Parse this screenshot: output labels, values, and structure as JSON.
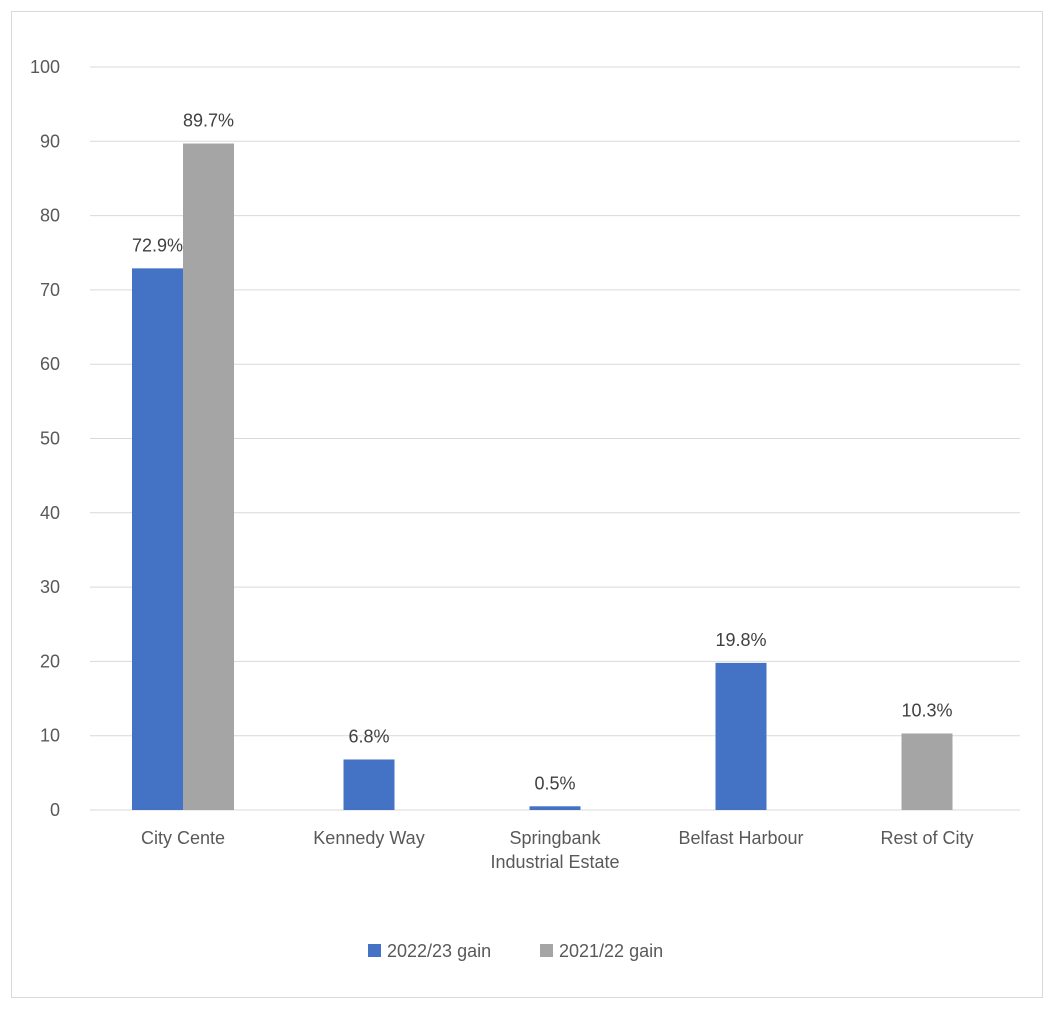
{
  "chart_data": {
    "type": "bar",
    "categories": [
      [
        "City Cente"
      ],
      [
        "Kennedy Way"
      ],
      [
        "Springbank",
        "Industrial Estate"
      ],
      [
        "Belfast Harbour"
      ],
      [
        "Rest of City"
      ]
    ],
    "series": [
      {
        "name": "2022/23 gain",
        "color": "#4472c4",
        "values": [
          72.9,
          6.8,
          0.5,
          19.8,
          null
        ],
        "labels": [
          "72.9%",
          "6.8%",
          "0.5%",
          "19.8%",
          ""
        ]
      },
      {
        "name": "2021/22 gain",
        "color": "#a5a5a5",
        "values": [
          89.7,
          null,
          null,
          null,
          10.3
        ],
        "labels": [
          "89.7%",
          "",
          "",
          "",
          "10.3%"
        ]
      }
    ],
    "ylim": [
      0,
      100
    ],
    "yticks": [
      0,
      10,
      20,
      30,
      40,
      50,
      60,
      70,
      80,
      90,
      100
    ],
    "grid": true,
    "legend": "bottom",
    "title": "",
    "xlabel": "",
    "ylabel": ""
  }
}
